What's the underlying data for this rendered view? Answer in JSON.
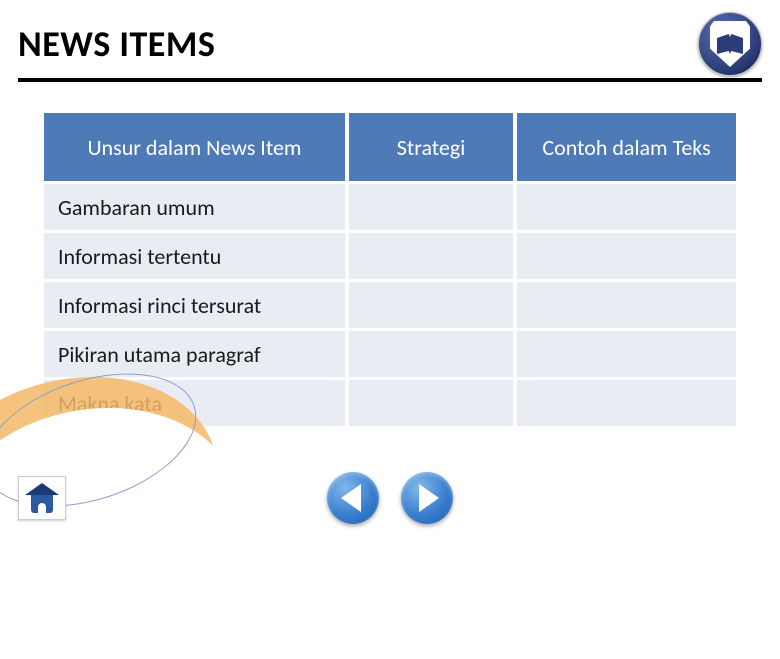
{
  "title": "NEWS ITEMS",
  "table": {
    "columns": [
      "Unsur dalam News Item",
      "Strategi",
      "Contoh dalam Teks"
    ],
    "rows": [
      {
        "label": "Gambaran umum",
        "strategi": "",
        "contoh": ""
      },
      {
        "label": "Informasi tertentu",
        "strategi": "",
        "contoh": ""
      },
      {
        "label": "Informasi rinci tersurat",
        "strategi": "",
        "contoh": ""
      },
      {
        "label": "Pikiran utama paragraf",
        "strategi": "",
        "contoh": ""
      },
      {
        "label": "Makna kata",
        "strategi": "",
        "contoh": ""
      }
    ],
    "header_bg": "#4f7ab8",
    "header_text_color": "#ffffff",
    "cell_bg": "#e9ecf3",
    "cell_text_color": "#1a1a1a",
    "header_fontsize": 22,
    "cell_fontsize": 22,
    "col_widths_pct": [
      44,
      24,
      32
    ]
  },
  "colors": {
    "divider": "#000000",
    "background": "#ffffff",
    "swoosh": "#f4b869",
    "nav_button": "#3a7fcf",
    "home_button": "#2c5aa0"
  }
}
